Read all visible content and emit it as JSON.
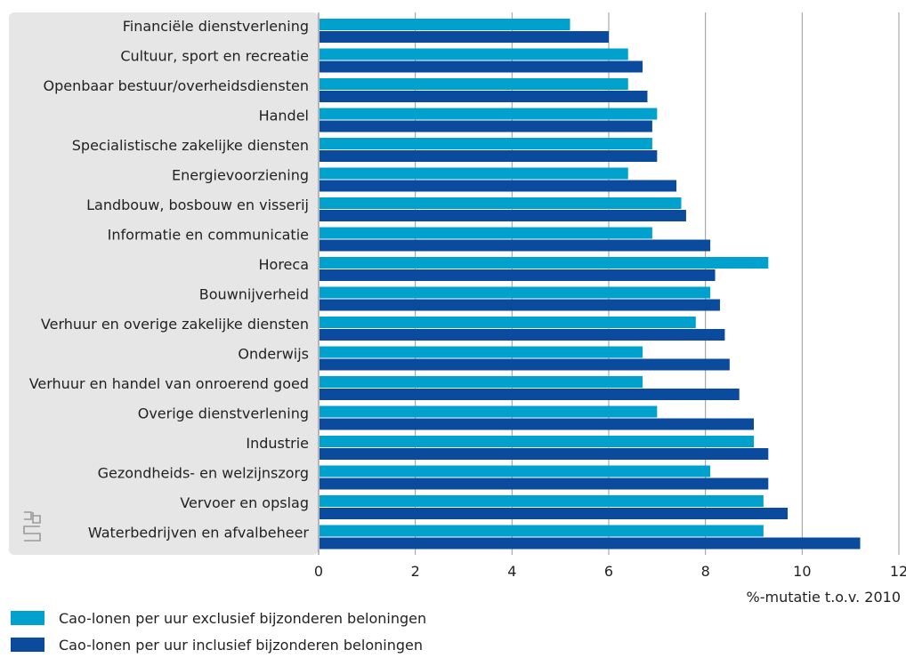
{
  "chart_data": {
    "type": "bar",
    "orientation": "horizontal",
    "categories": [
      "Financiële dienstverlening",
      "Cultuur, sport en recreatie",
      "Openbaar bestuur/overheidsdiensten",
      "Handel",
      "Specialistische zakelijke diensten",
      "Energievoorziening",
      "Landbouw, bosbouw en visserij",
      "Informatie en communicatie",
      "Horeca",
      "Bouwnijverheid",
      "Verhuur en overige zakelijke diensten",
      "Onderwijs",
      "Verhuur en handel van onroerend goed",
      "Overige dienstverlening",
      "Industrie",
      "Gezondheids- en welzijnszorg",
      "Vervoer en opslag",
      "Waterbedrijven en afvalbeheer"
    ],
    "series": [
      {
        "name": "Cao-lonen per uur exclusief bijzonderen beloningen",
        "color": "#00a1cd",
        "values": [
          5.2,
          6.4,
          6.4,
          7.0,
          6.9,
          6.4,
          7.5,
          6.9,
          9.3,
          8.1,
          7.8,
          6.7,
          6.7,
          7.0,
          9.0,
          8.1,
          9.2,
          9.2
        ]
      },
      {
        "name": "Cao-lonen per uur inclusief bijzonderen beloningen",
        "color": "#0b4b9d",
        "values": [
          6.0,
          6.7,
          6.8,
          6.9,
          7.0,
          7.4,
          7.6,
          8.1,
          8.2,
          8.3,
          8.4,
          8.5,
          8.7,
          9.0,
          9.3,
          9.3,
          9.7,
          11.2
        ]
      }
    ],
    "x_ticks": [
      "0",
      "2",
      "4",
      "6",
      "8",
      "10",
      "12"
    ],
    "xlim": [
      0,
      12
    ],
    "xlabel": "%-mutatie t.o.v. 2010",
    "grid": true,
    "legend_position": "bottom-left",
    "label_panel_color": "#e6e6e6",
    "grid_color": "#9a9a9a"
  }
}
